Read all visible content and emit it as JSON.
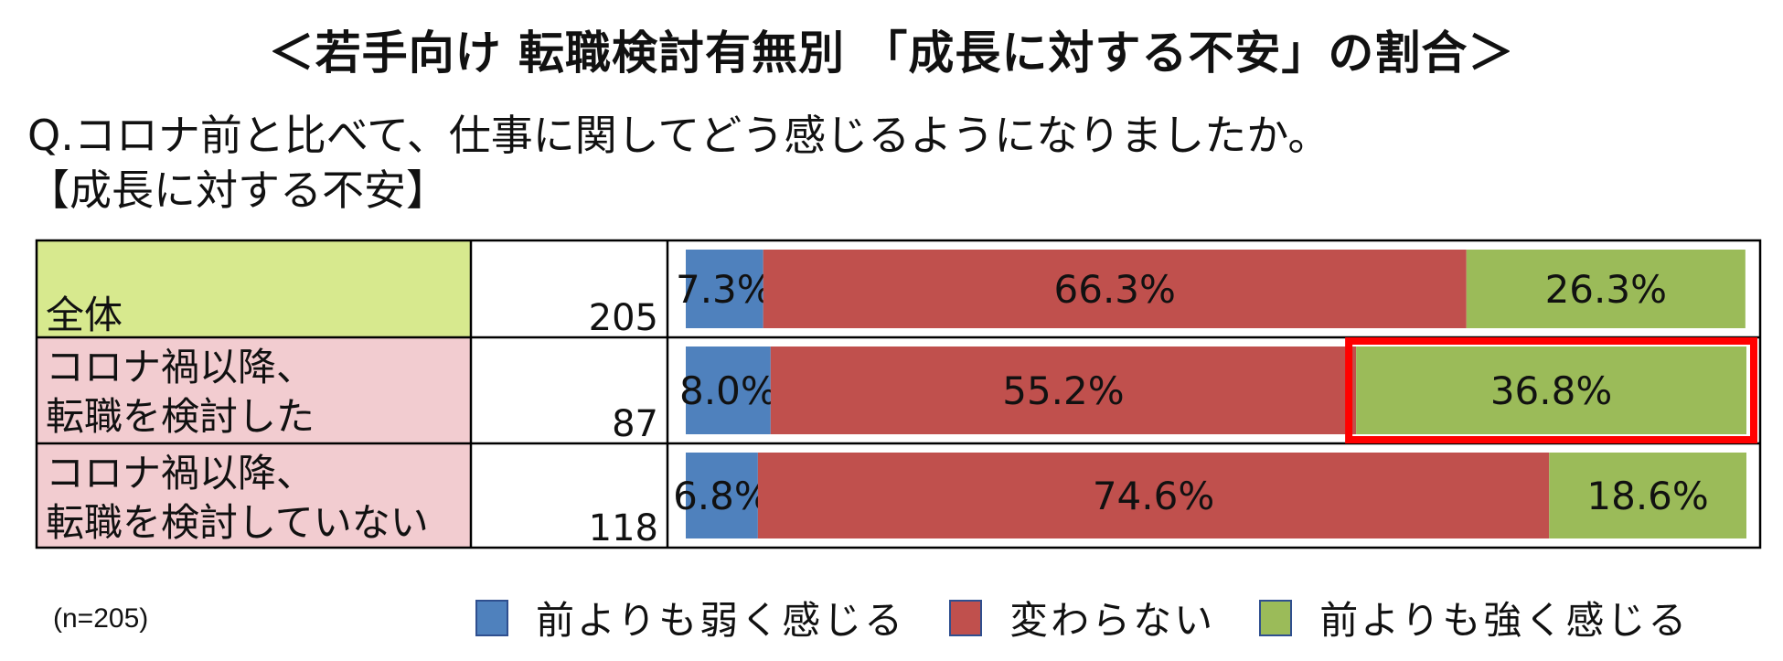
{
  "title": "＜若手向け 転職検討有無別 「成長に対する不安」の割合＞",
  "question": "Q.コロナ前と比べて、仕事に関してどう感じるようになりましたか。",
  "subquestion": "【成長に対する不安】",
  "n_note": "(n=205)",
  "colors": {
    "weaker": "#4f81bd",
    "same": "#c0504d",
    "stronger": "#9bbb59",
    "highlight": "#ff0000",
    "label_total_bg": "#d7e98e",
    "label_group_bg": "#f2ccd0"
  },
  "chart_data": {
    "type": "bar",
    "orientation": "horizontal",
    "stacked": true,
    "percent": true,
    "categories": [
      {
        "label_lines": [
          "全体"
        ],
        "n": "205"
      },
      {
        "label_lines": [
          "コロナ禍以降、",
          "転職を検討した"
        ],
        "n": "87"
      },
      {
        "label_lines": [
          "コロナ禍以降、",
          "転職を検討していない"
        ],
        "n": "118"
      }
    ],
    "series": [
      {
        "name": "前よりも弱く感じる",
        "color": "#4f81bd",
        "values": [
          7.3,
          8.0,
          6.8
        ],
        "labels": [
          "7.3%",
          "8.0%",
          "6.8%"
        ]
      },
      {
        "name": "変わらない",
        "color": "#c0504d",
        "values": [
          66.3,
          55.2,
          74.6
        ],
        "labels": [
          "66.3%",
          "55.2%",
          "74.6%"
        ]
      },
      {
        "name": "前よりも強く感じる",
        "color": "#9bbb59",
        "values": [
          26.3,
          36.8,
          18.6
        ],
        "labels": [
          "26.3%",
          "36.8%",
          "18.6%"
        ]
      }
    ],
    "highlight": {
      "row": 1,
      "series": 2
    },
    "xlim": [
      0,
      100
    ],
    "legend_position": "bottom"
  }
}
